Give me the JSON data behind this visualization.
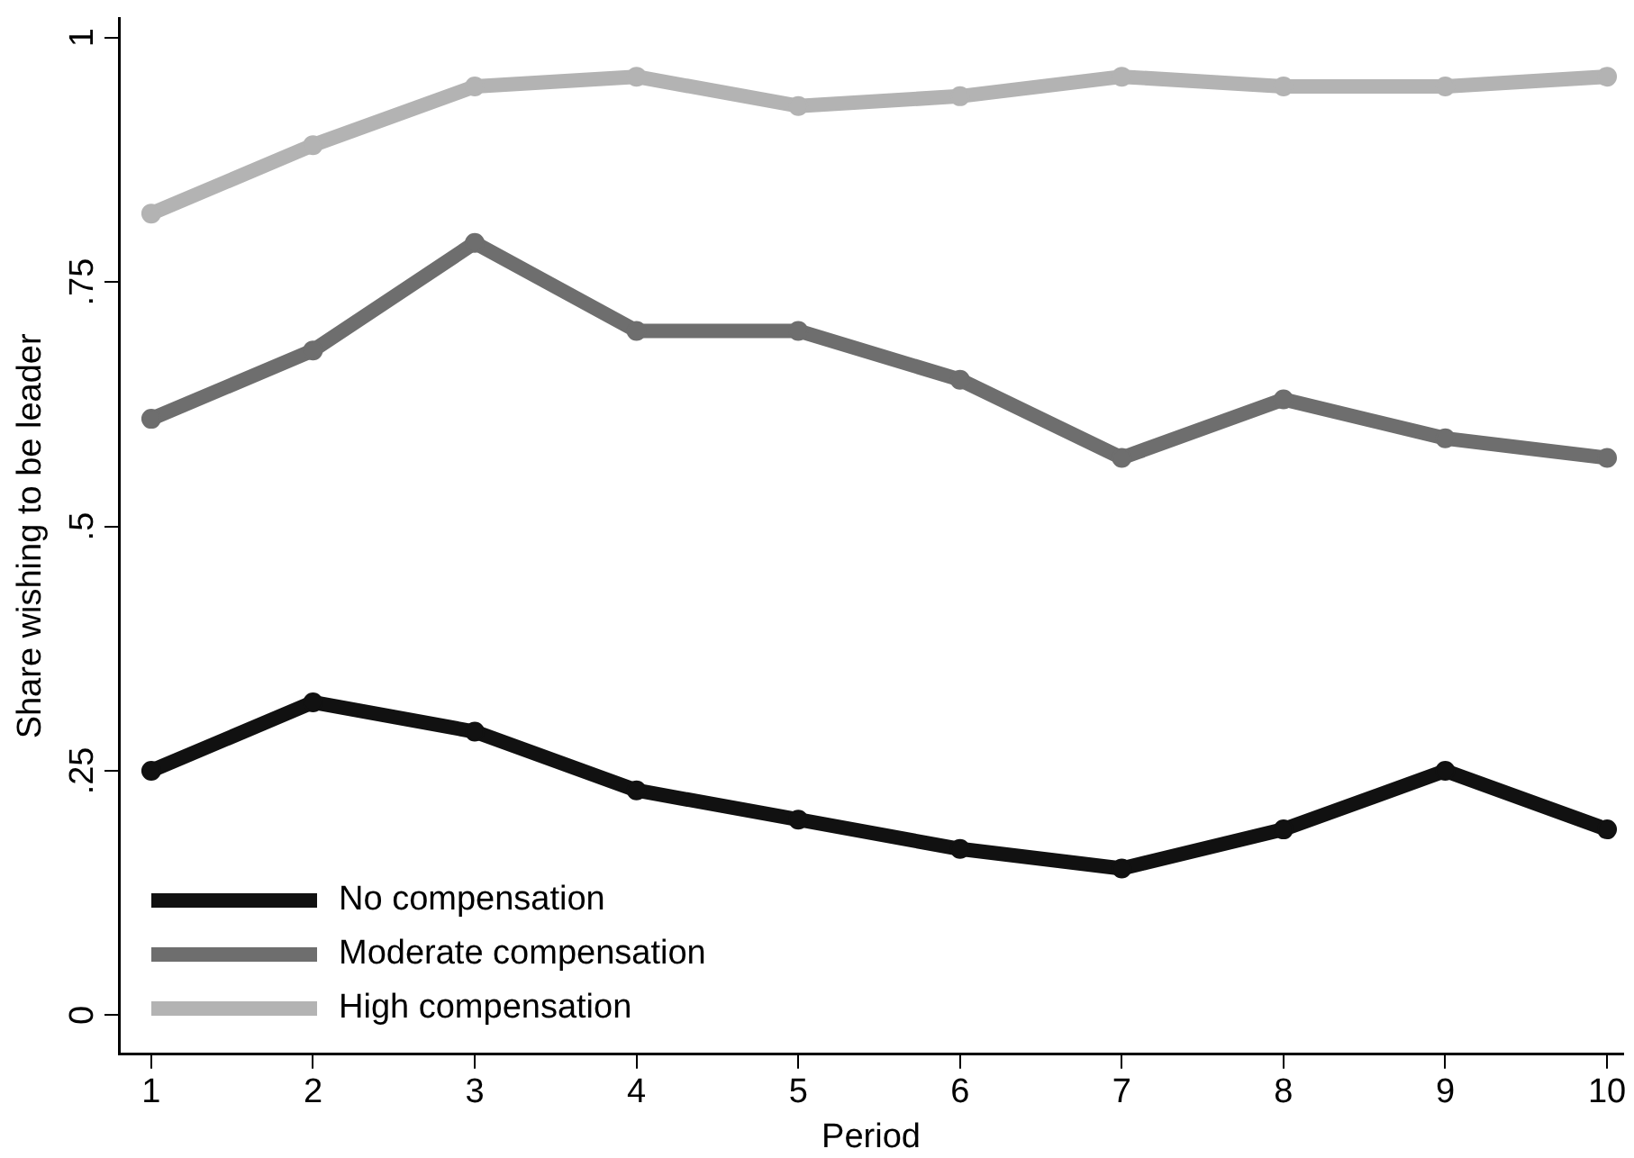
{
  "chart_data": {
    "type": "line",
    "xlabel": "Period",
    "ylabel": "Share wishing to be leader",
    "x": [
      1,
      2,
      3,
      4,
      5,
      6,
      7,
      8,
      9,
      10
    ],
    "series": [
      {
        "name": "No compensation",
        "color": "#111111",
        "values": [
          0.25,
          0.32,
          0.29,
          0.23,
          0.2,
          0.17,
          0.15,
          0.19,
          0.25,
          0.19
        ]
      },
      {
        "name": "Moderate compensation",
        "color": "#6e6e6e",
        "values": [
          0.61,
          0.68,
          0.79,
          0.7,
          0.7,
          0.65,
          0.57,
          0.63,
          0.59,
          0.57
        ]
      },
      {
        "name": "High compensation",
        "color": "#b3b3b3",
        "values": [
          0.82,
          0.89,
          0.95,
          0.96,
          0.93,
          0.94,
          0.96,
          0.95,
          0.95,
          0.96
        ]
      }
    ],
    "xlim": [
      0.8,
      10.1
    ],
    "xticks": [
      1,
      2,
      3,
      4,
      5,
      6,
      7,
      8,
      9,
      10
    ],
    "ylim": [
      -0.04,
      1.02
    ],
    "yticks": [
      {
        "value": 0,
        "label": "0"
      },
      {
        "value": 0.25,
        "label": ".25"
      },
      {
        "value": 0.5,
        "label": ".5"
      },
      {
        "value": 0.75,
        "label": ".75"
      },
      {
        "value": 1,
        "label": "1"
      }
    ],
    "grid": false,
    "legend": "bottom left",
    "marker": "circle",
    "line_style": "solid"
  }
}
